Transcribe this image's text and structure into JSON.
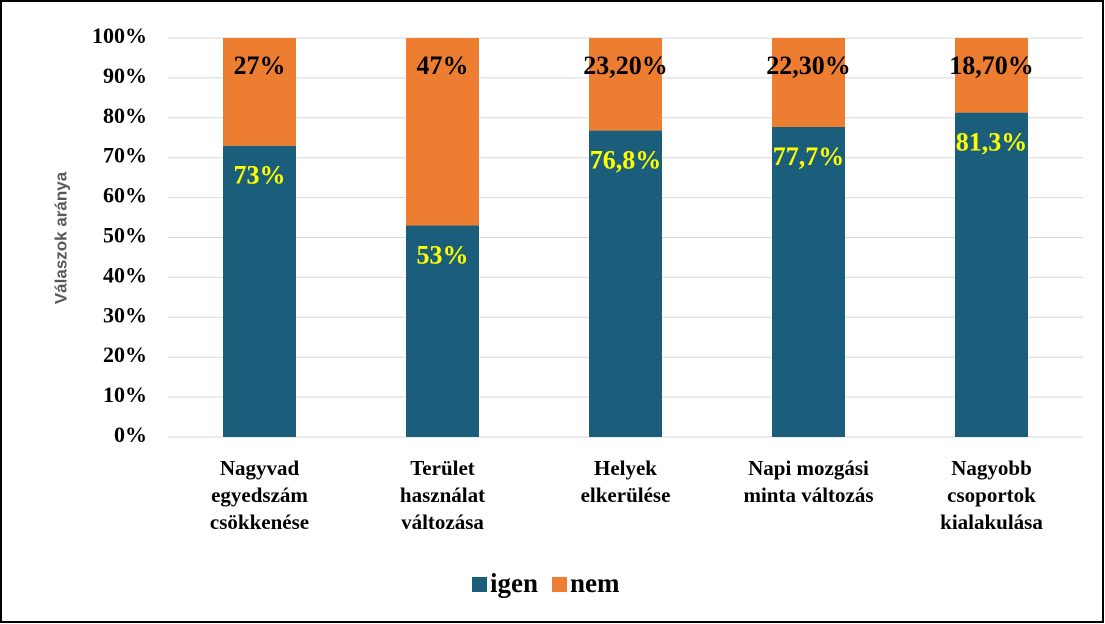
{
  "chart_data": {
    "type": "stacked_bar",
    "ylabel": "Válaszok aránya",
    "categories": [
      [
        "Nagyvad",
        "egyedszám",
        "csökkenése"
      ],
      [
        "Terület",
        "használat",
        "változása"
      ],
      [
        "Helyek",
        "elkerülése"
      ],
      [
        "Napi mozgási",
        "minta változás"
      ],
      [
        "Nagyobb",
        "csoportok",
        "kialakulása"
      ]
    ],
    "series": [
      {
        "name": "igen",
        "color": "#1b5e7c",
        "label_color": "#ffff00",
        "values": [
          73,
          53,
          76.8,
          77.7,
          81.3
        ],
        "value_labels": [
          "73%",
          "53%",
          "76,8%",
          "77,7%",
          "81,3%"
        ]
      },
      {
        "name": "nem",
        "color": "#ed7d31",
        "label_color": "#000000",
        "values": [
          27,
          47,
          23.2,
          22.3,
          18.7
        ],
        "value_labels": [
          "27%",
          "47%",
          "23,20%",
          "22,30%",
          "18,70%"
        ]
      }
    ],
    "ylim": [
      0,
      100
    ],
    "yticks": [
      {
        "value": 0,
        "label": "0%"
      },
      {
        "value": 10,
        "label": "10%"
      },
      {
        "value": 20,
        "label": "20%"
      },
      {
        "value": 30,
        "label": "30%"
      },
      {
        "value": 40,
        "label": "40%"
      },
      {
        "value": 50,
        "label": "50%"
      },
      {
        "value": 60,
        "label": "60%"
      },
      {
        "value": 70,
        "label": "70%"
      },
      {
        "value": 80,
        "label": "80%"
      },
      {
        "value": 90,
        "label": "90%"
      },
      {
        "value": 100,
        "label": "100%"
      }
    ],
    "grid": true,
    "legend": "bottom"
  }
}
